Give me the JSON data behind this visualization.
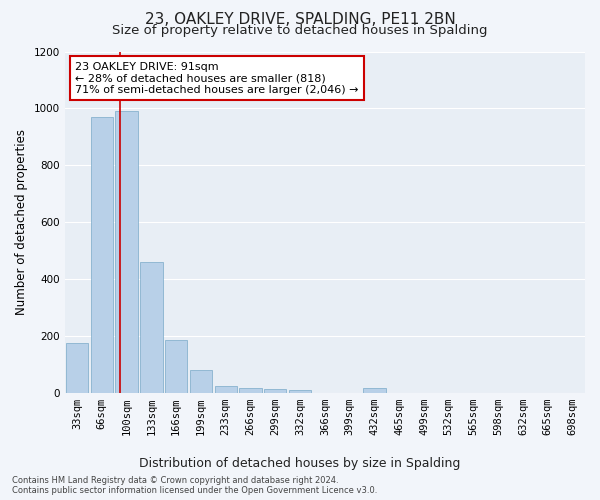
{
  "title1": "23, OAKLEY DRIVE, SPALDING, PE11 2BN",
  "title2": "Size of property relative to detached houses in Spalding",
  "xlabel": "Distribution of detached houses by size in Spalding",
  "ylabel": "Number of detached properties",
  "footnote": "Contains HM Land Registry data © Crown copyright and database right 2024.\nContains public sector information licensed under the Open Government Licence v3.0.",
  "categories": [
    "33sqm",
    "66sqm",
    "100sqm",
    "133sqm",
    "166sqm",
    "199sqm",
    "233sqm",
    "266sqm",
    "299sqm",
    "332sqm",
    "366sqm",
    "399sqm",
    "432sqm",
    "465sqm",
    "499sqm",
    "532sqm",
    "565sqm",
    "598sqm",
    "632sqm",
    "665sqm",
    "698sqm"
  ],
  "values": [
    175,
    970,
    990,
    460,
    185,
    80,
    25,
    18,
    12,
    8,
    0,
    0,
    18,
    0,
    0,
    0,
    0,
    0,
    0,
    0,
    0
  ],
  "bar_color": "#b8d0e8",
  "bar_edge_color": "#7aaac8",
  "annotation_text": "23 OAKLEY DRIVE: 91sqm\n← 28% of detached houses are smaller (818)\n71% of semi-detached houses are larger (2,046) →",
  "annotation_box_facecolor": "#ffffff",
  "annotation_box_edgecolor": "#cc0000",
  "subject_line_color": "#cc0000",
  "ylim": [
    0,
    1200
  ],
  "yticks": [
    0,
    200,
    400,
    600,
    800,
    1000,
    1200
  ],
  "plot_bg_color": "#e8eef5",
  "fig_bg_color": "#f2f5fa",
  "grid_color": "#ffffff",
  "title1_fontsize": 11,
  "title2_fontsize": 9.5,
  "xlabel_fontsize": 9,
  "ylabel_fontsize": 8.5,
  "tick_fontsize": 7.5,
  "annot_fontsize": 8,
  "footnote_fontsize": 6,
  "red_line_x": 1.75
}
